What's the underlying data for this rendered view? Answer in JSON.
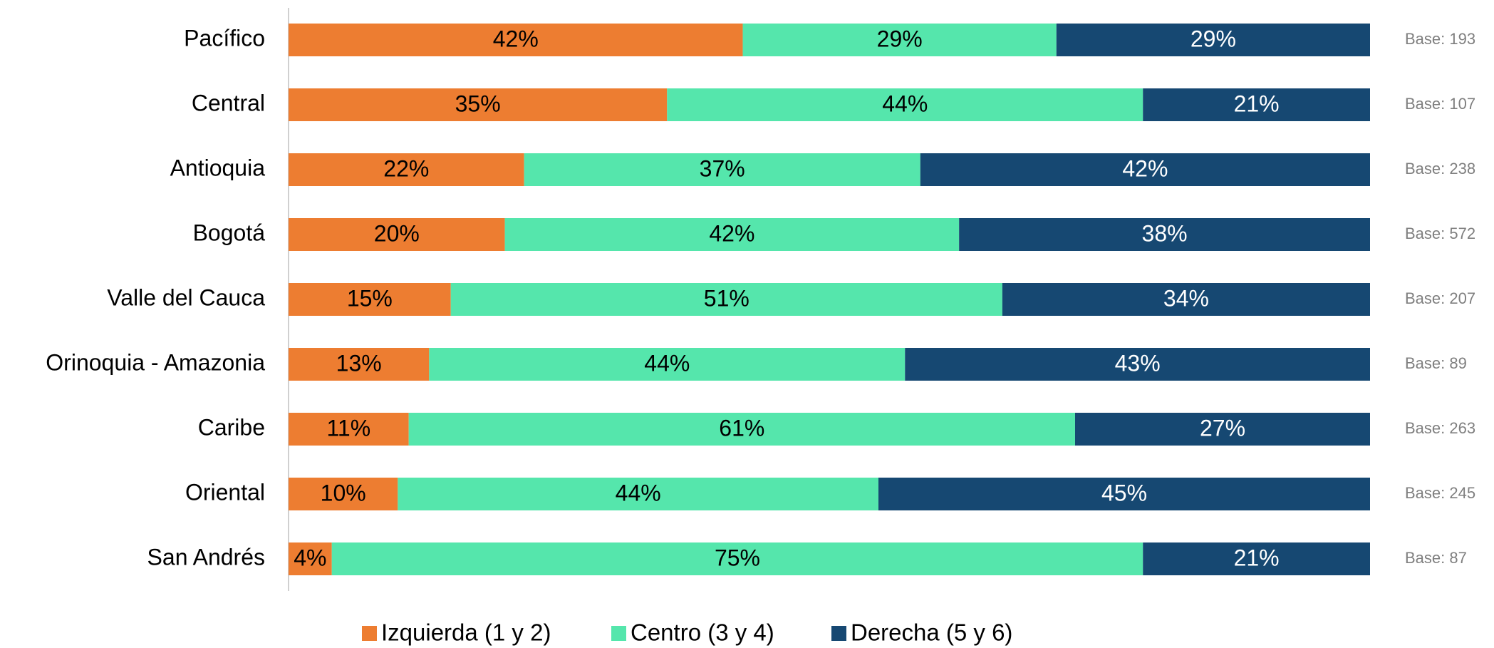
{
  "chart_data": {
    "type": "bar",
    "orientation": "horizontal",
    "stacked": "percent",
    "categories": [
      "Pacífico",
      "Central",
      "Antioquia",
      "Bogotá",
      "Valle del Cauca",
      "Orinoquia - Amazonia",
      "Caribe",
      "Oriental",
      "San Andrés"
    ],
    "series": [
      {
        "name": "Izquierda (1 y 2)",
        "color": "#ED7D31",
        "label_color": "#000000",
        "values": [
          42,
          35,
          22,
          20,
          15,
          13,
          11,
          10,
          4
        ],
        "value_labels": [
          "42%",
          "35%",
          "22%",
          "20%",
          "15%",
          "13%",
          "11%",
          "10%",
          "4%"
        ]
      },
      {
        "name": "Centro (3 y 4)",
        "color": "#55E6AC",
        "label_color": "#000000",
        "values": [
          29,
          44,
          37,
          42,
          51,
          44,
          61,
          44,
          75
        ],
        "value_labels": [
          "29%",
          "44%",
          "37%",
          "42%",
          "51%",
          "44%",
          "61%",
          "44%",
          "75%"
        ]
      },
      {
        "name": "Derecha (5 y 6)",
        "color": "#164872",
        "label_color": "#FFFFFF",
        "values": [
          29,
          21,
          42,
          38,
          34,
          43,
          27,
          45,
          21
        ],
        "value_labels": [
          "29%",
          "21%",
          "42%",
          "38%",
          "34%",
          "43%",
          "27%",
          "45%",
          "21%"
        ]
      }
    ],
    "annotations": [
      "Base: 193",
      "Base: 107",
      "Base: 238",
      "Base: 572",
      "Base: 207",
      "Base: 89",
      "Base: 263",
      "Base: 245",
      "Base: 87"
    ],
    "legend": "bottom"
  }
}
